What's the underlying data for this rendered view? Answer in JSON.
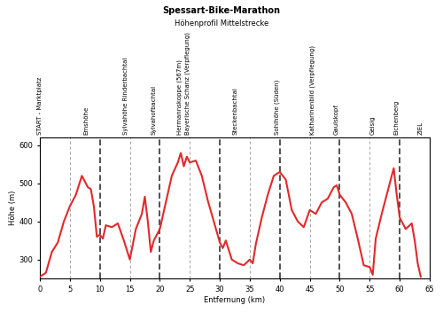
{
  "chart_data": {
    "type": "line",
    "title": "Spessart-Bike-Marathon",
    "subtitle": "Höhenprofil Mittelstrecke",
    "x_label": "Entfernung (km)",
    "y_label": "Höhe (m)",
    "x": [
      0,
      1,
      2,
      3,
      4,
      5,
      6,
      7,
      8,
      8.5,
      9,
      9.5,
      10,
      10.5,
      11,
      12,
      13,
      14,
      15,
      16,
      17,
      17.5,
      18,
      18.5,
      19,
      20,
      21,
      22,
      23,
      23.5,
      24,
      24.5,
      25,
      26,
      27,
      28,
      29,
      30,
      30.5,
      31,
      32,
      33,
      34,
      35,
      35.5,
      36,
      37,
      38,
      39,
      40,
      41,
      42,
      43,
      44,
      45,
      46,
      47,
      48,
      49,
      49.5,
      50,
      51,
      52,
      53,
      54,
      55,
      55.5,
      56,
      57,
      58,
      58.5,
      59,
      59.5,
      60,
      61,
      62,
      62.5,
      63,
      63.5
    ],
    "values": [
      255,
      265,
      320,
      345,
      400,
      440,
      470,
      520,
      490,
      485,
      440,
      360,
      365,
      355,
      390,
      385,
      395,
      350,
      300,
      380,
      420,
      465,
      400,
      320,
      350,
      380,
      450,
      520,
      555,
      580,
      545,
      570,
      555,
      560,
      520,
      455,
      400,
      345,
      330,
      350,
      300,
      290,
      285,
      300,
      290,
      340,
      410,
      470,
      520,
      530,
      510,
      430,
      400,
      385,
      430,
      420,
      450,
      460,
      490,
      495,
      470,
      450,
      420,
      355,
      285,
      280,
      260,
      355,
      420,
      480,
      510,
      540,
      470,
      410,
      380,
      395,
      350,
      290,
      255
    ],
    "color": "#e3282b",
    "xlim": [
      0,
      65
    ],
    "xticks": [
      0,
      5,
      10,
      15,
      20,
      25,
      30,
      35,
      40,
      45,
      50,
      55,
      60,
      65
    ],
    "ylim": [
      250,
      620
    ],
    "yticks": [
      300,
      400,
      500,
      600
    ],
    "grid": "x",
    "annotations": [
      {
        "x": 0,
        "text": "START - Marktplatz"
      },
      {
        "x": 7.8,
        "text": "Emshöhe"
      },
      {
        "x": 14.3,
        "text": "Sylvahöhe Rinderbachtal"
      },
      {
        "x": 19,
        "text": "Sylvahofbachtal"
      },
      {
        "x": 23.3,
        "text": "Hermannskoppe (567m)"
      },
      {
        "x": 24.7,
        "text": "Bayerische Schanz (Verpflegung)"
      },
      {
        "x": 32.5,
        "text": "Steckenbachtal"
      },
      {
        "x": 39.5,
        "text": "Sohlhöhe (Süden)"
      },
      {
        "x": 45.5,
        "text": "Katharinenbild (Verpflegung)"
      },
      {
        "x": 49.5,
        "text": "Gaulskopf"
      },
      {
        "x": 55.5,
        "text": "Geisig"
      },
      {
        "x": 59.5,
        "text": "Eichenberg"
      },
      {
        "x": 63.5,
        "text": "ZIEL"
      }
    ]
  }
}
